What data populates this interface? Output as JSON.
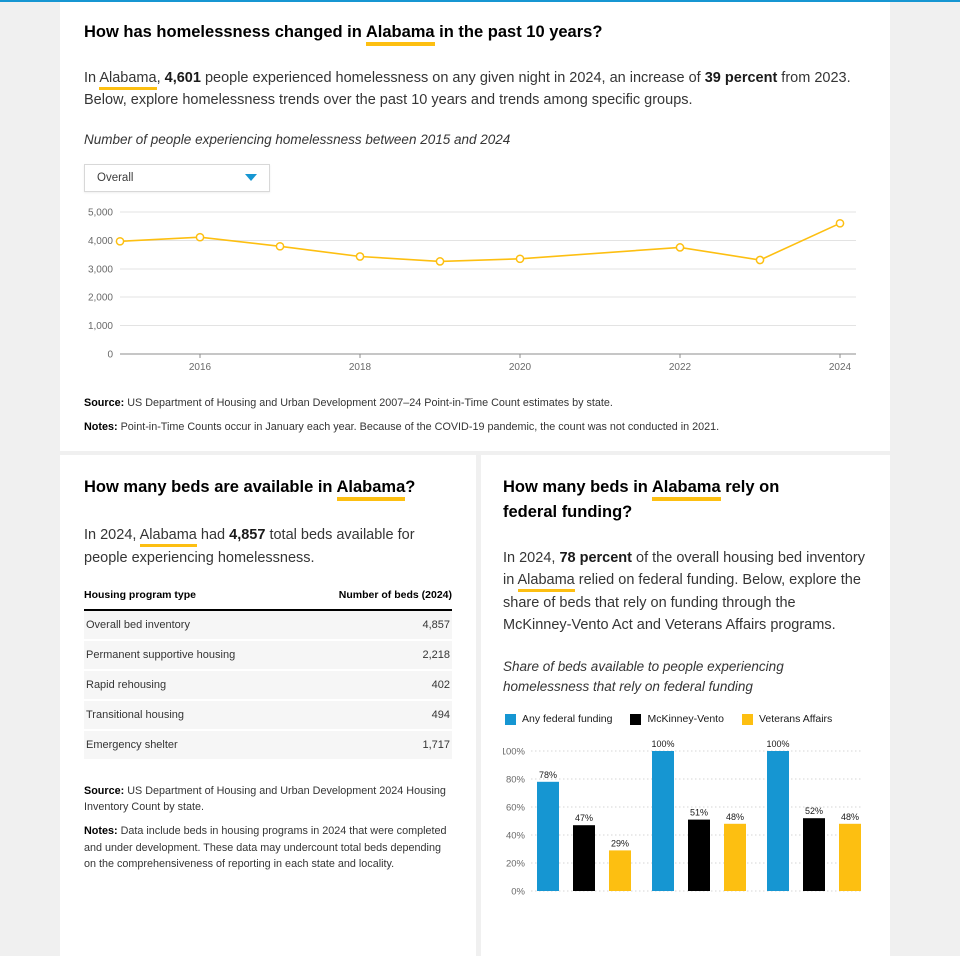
{
  "theme": {
    "accent_blue": "#1696d2",
    "accent_yellow": "#fdbf11",
    "bar_black": "#000000",
    "page_bg": "#f0f0f0"
  },
  "trends": {
    "title": {
      "pre": "How has homelessness changed in ",
      "state": "Alabama",
      "post": " in the past 10 years?"
    },
    "intro": {
      "t1": "In ",
      "state_link": "Alabama",
      "t2": ", ",
      "count": "4,601",
      "t3": " people experienced homelessness on any given night in 2024, an increase of ",
      "pct": "39 percent",
      "t4": " from 2023. Below, explore homelessness trends over the past 10 years and trends among specific groups."
    },
    "chart_subtitle": "Number of people experiencing homelessness between 2015 and 2024",
    "dropdown_value": "Overall",
    "source_label": "Source:",
    "source_text": " US Department of Housing and Urban Development 2007–24 Point-in-Time Count estimates by state.",
    "notes_label": "Notes:",
    "notes_text": " Point-in-Time Counts occur in January each year. Because of the COVID-19 pandemic, the count was not conducted in 2021."
  },
  "beds": {
    "title": {
      "pre": "How many beds are available in ",
      "state": "Alabama",
      "post": "?"
    },
    "intro": {
      "t1": "In 2024, ",
      "state_link": "Alabama",
      "t2": " had ",
      "count": "4,857",
      "t3": " total beds available for people experiencing homelessness."
    },
    "table": {
      "col1": "Housing program type",
      "col2": "Number of beds (2024)",
      "rows": [
        {
          "program": "Overall bed inventory",
          "beds": "4,857"
        },
        {
          "program": "Permanent supportive housing",
          "beds": "2,218"
        },
        {
          "program": "Rapid rehousing",
          "beds": "402"
        },
        {
          "program": "Transitional housing",
          "beds": "494"
        },
        {
          "program": "Emergency shelter",
          "beds": "1,717"
        }
      ]
    },
    "source_label": "Source:",
    "source_text": " US Department of Housing and Urban Development 2024 Housing Inventory Count by state.",
    "notes_label": "Notes:",
    "notes_text": " Data include beds in housing programs in 2024 that were completed and under development. These data may undercount total beds depending on the comprehensiveness of reporting in each state and locality."
  },
  "funding": {
    "title": {
      "pre": "How many beds in ",
      "state": "Alabama",
      "post": " rely on federal funding?"
    },
    "intro": {
      "t1": "In 2024, ",
      "pct": "78 percent",
      "t2": " of the overall housing bed inventory in ",
      "state_link": "Alabama",
      "t3": " relied on federal funding. Below, explore the share of beds that rely on funding through the McKinney-Vento Act and Veterans Affairs programs."
    },
    "chart_subtitle": "Share of beds available to people experiencing homelessness that rely on federal funding"
  },
  "chart_data": [
    {
      "type": "line",
      "title": "Number of people experiencing homelessness between 2015 and 2024",
      "x": [
        2015,
        2016,
        2017,
        2018,
        2019,
        2020,
        2022,
        2023,
        2024
      ],
      "values": [
        3970,
        4111,
        3793,
        3434,
        3261,
        3351,
        3752,
        3310,
        4601
      ],
      "ylim": [
        0,
        5000
      ],
      "yticks": [
        0,
        1000,
        2000,
        3000,
        4000,
        5000
      ],
      "xticks": [
        2016,
        2018,
        2020,
        2022,
        2024
      ],
      "line_color": "#fdbf11",
      "grid": true,
      "note": "No count conducted in 2021 due to COVID-19"
    },
    {
      "type": "bar",
      "title": "Share of beds available to people experiencing homelessness that rely on federal funding",
      "categories": [
        "",
        "",
        ""
      ],
      "series": [
        {
          "name": "Any federal funding",
          "color": "#1696d2",
          "values": [
            78,
            100,
            100
          ]
        },
        {
          "name": "McKinney-Vento",
          "color": "#000000",
          "values": [
            47,
            51,
            52
          ]
        },
        {
          "name": "Veterans Affairs",
          "color": "#fdbf11",
          "values": [
            29,
            48,
            48
          ]
        }
      ],
      "ylim": [
        0,
        100
      ],
      "yticks": [
        100,
        80,
        60,
        40,
        20,
        0
      ],
      "value_label_format": "percent",
      "legend_position": "top",
      "grid": "dashed"
    }
  ]
}
